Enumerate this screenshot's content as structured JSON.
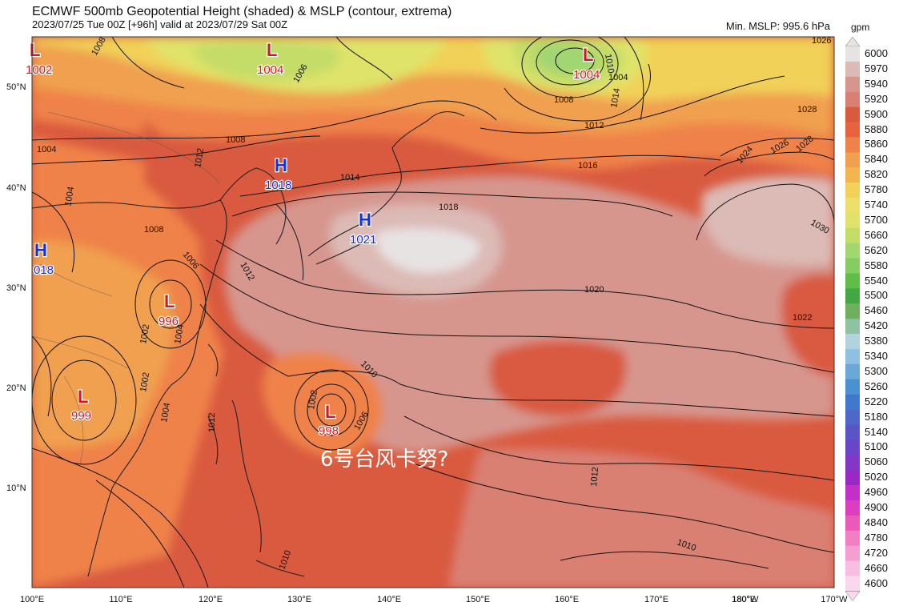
{
  "header": {
    "title": "ECMWF 500mb Geopotential Height (shaded) & MSLP (contour, extrema)",
    "subtitle": "2023/07/25 Tue 00Z [+96h] valid at 2023/07/29 Sat 00Z",
    "min_mslp": "Min. MSLP: 995.6 hPa",
    "unit": "gpm"
  },
  "overlay_text": "6号台风卡努?",
  "colorbar": {
    "labels": [
      "6000",
      "5970",
      "5940",
      "5920",
      "5900",
      "5880",
      "5860",
      "5840",
      "5820",
      "5780",
      "5740",
      "5700",
      "5660",
      "5620",
      "5580",
      "5540",
      "5500",
      "5460",
      "5420",
      "5380",
      "5340",
      "5300",
      "5260",
      "5220",
      "5180",
      "5140",
      "5100",
      "5060",
      "5020",
      "4960",
      "4900",
      "4840",
      "4780",
      "4720",
      "4660",
      "4600"
    ],
    "colors": [
      "#e7e3e3",
      "#dcbab6",
      "#d6968e",
      "#d98073",
      "#d95a3f",
      "#e8623f",
      "#ef8248",
      "#f0a04f",
      "#f3b64f",
      "#f1d159",
      "#ecdf6b",
      "#dfe36b",
      "#c4dc68",
      "#a1d672",
      "#84cc64",
      "#5fbd48",
      "#43a843",
      "#6fb05c",
      "#8fc1a3",
      "#b2d2df",
      "#8fbfe2",
      "#6aa8d8",
      "#4b90d1",
      "#3f78cc",
      "#4e67c9",
      "#5a55c7",
      "#6a45c9",
      "#8436c9",
      "#9a28c4",
      "#c32fc8",
      "#df3dc0",
      "#ec5ab9",
      "#f27ec4",
      "#f59ed1",
      "#f8bde0",
      "#fbd7ec"
    ]
  },
  "axes": {
    "lon_labels": [
      "100°E",
      "110°E",
      "120°E",
      "130°E",
      "140°E",
      "150°E",
      "160°E",
      "170°E",
      "180°W",
      "170°W"
    ],
    "lon_extra": "180°E",
    "lat_labels": [
      "50°N",
      "40°N",
      "30°N",
      "20°N",
      "10°N"
    ]
  },
  "pressure_centers": [
    {
      "type": "L",
      "value": "1002",
      "color": "#d8161d"
    },
    {
      "type": "L",
      "value": "1004",
      "color": "#d8161d"
    },
    {
      "type": "L",
      "value": "1004",
      "color": "#d8161d"
    },
    {
      "type": "H",
      "value": "1018",
      "color": "#1430e8"
    },
    {
      "type": "H",
      "value": "1021",
      "color": "#1430e8"
    },
    {
      "type": "H",
      "value": "018",
      "color": "#1430e8"
    },
    {
      "type": "L",
      "value": "996",
      "color": "#d8161d"
    },
    {
      "type": "L",
      "value": "999",
      "color": "#d8161d"
    },
    {
      "type": "L",
      "value": "998",
      "color": "#d8161d"
    }
  ],
  "isobar_labels": [
    "1008",
    "1006",
    "1008",
    "1010",
    "1014",
    "1016",
    "1012",
    "1008",
    "1004",
    "1004",
    "1012",
    "1018",
    "1010",
    "1014",
    "1020",
    "1024",
    "1026",
    "1028",
    "1028",
    "1030",
    "1026",
    "1022",
    "1012",
    "1010",
    "1010",
    "1012",
    "1002",
    "1006",
    "1002",
    "1004",
    "1006",
    "1008",
    "1004",
    "1002",
    "1004",
    "1012"
  ]
}
